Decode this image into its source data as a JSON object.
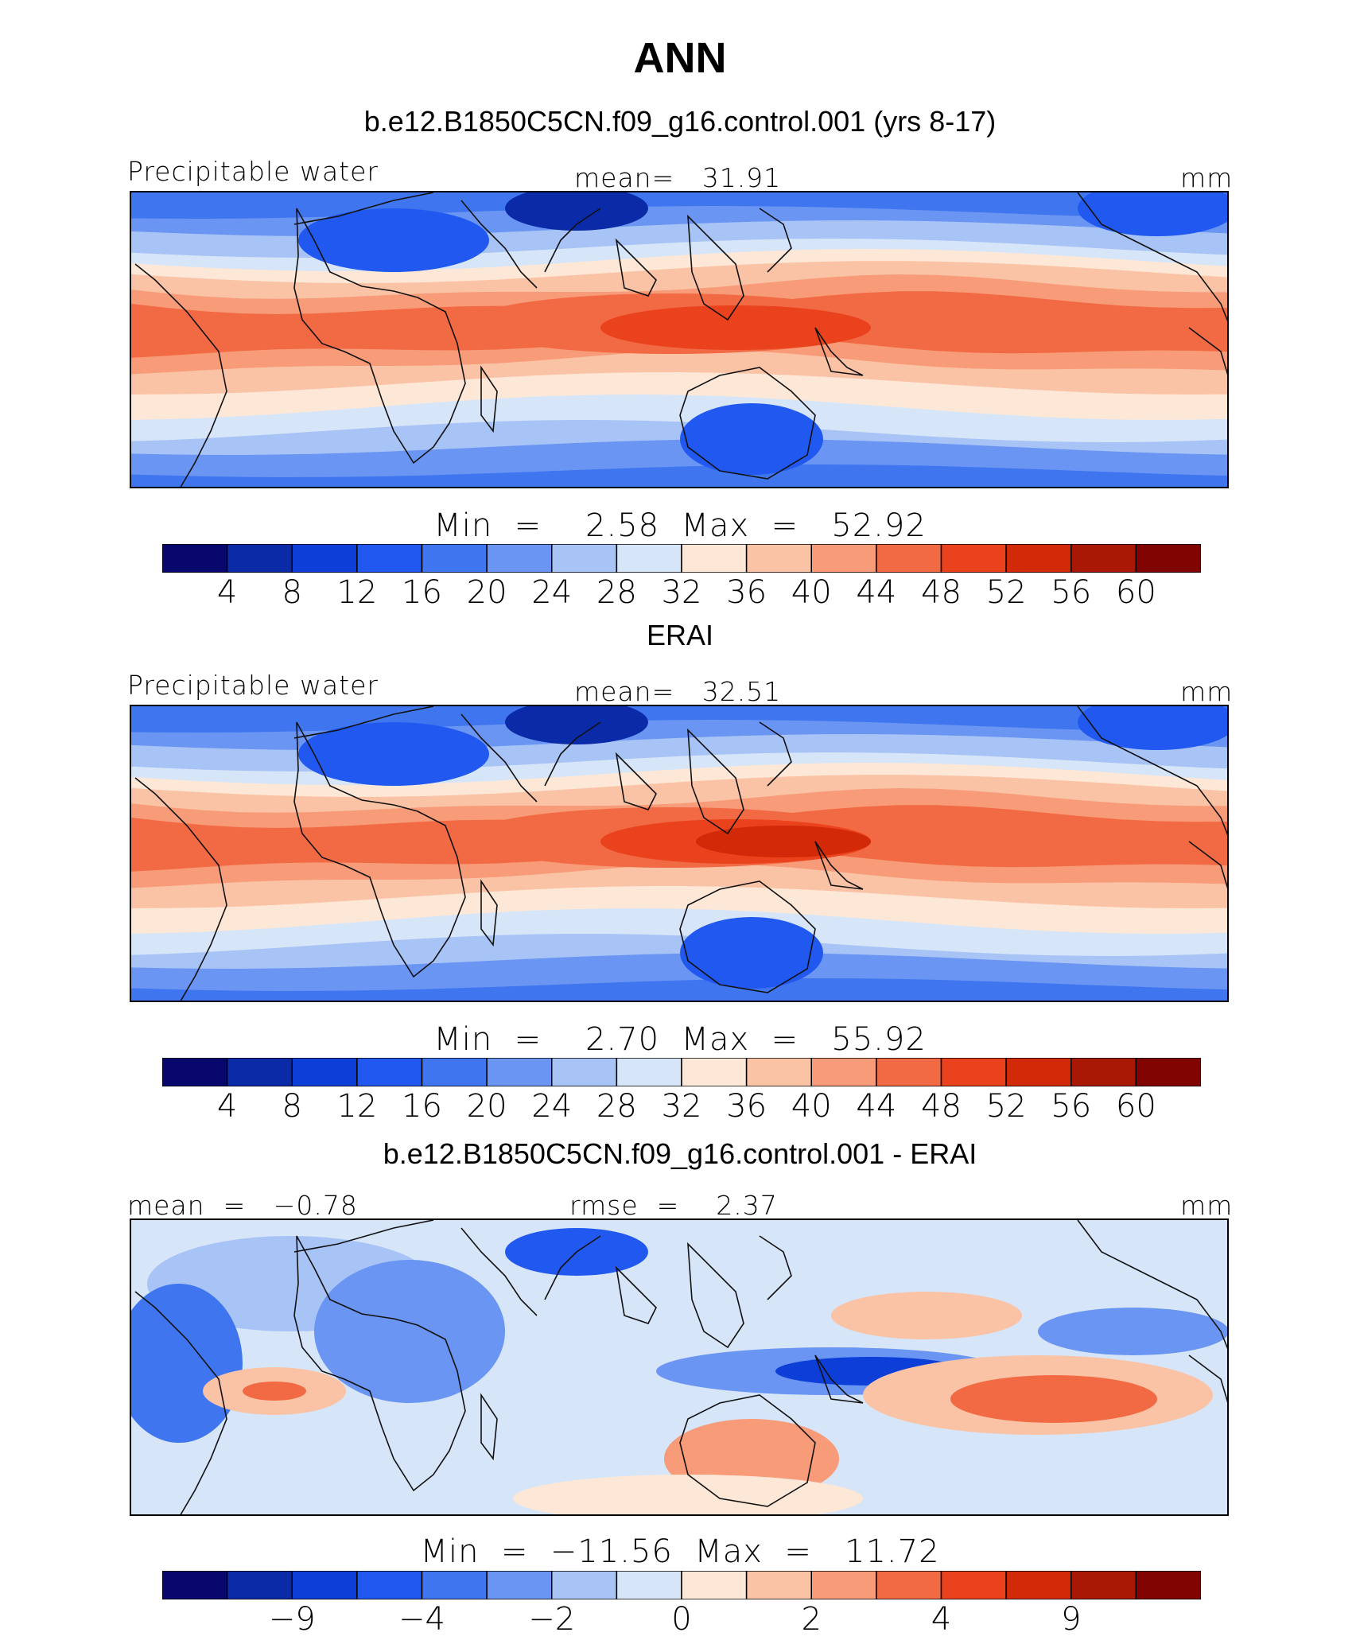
{
  "title": "ANN",
  "colors": [
    "#08076e",
    "#0a2aa8",
    "#0d3fd8",
    "#2158f0",
    "#3f76f0",
    "#6a95f2",
    "#a8c3f6",
    "#d6e5f8",
    "#fde8d8",
    "#fbc3a6",
    "#f79b78",
    "#f26a44",
    "#e9421c",
    "#d22a08",
    "#a81804",
    "#800402"
  ],
  "chart_data": [
    {
      "type": "heatmap",
      "title": "b.e12.B1850C5CN.f09_g16.control.001 (yrs 8-17)",
      "variable": "Precipitable water",
      "stat_label": "mean=   31.91",
      "units": "mm",
      "mean": 31.91,
      "min": 2.58,
      "max": 52.92,
      "minmax_label": "Min  =    2.58  Max  =   52.92",
      "levels": [
        4,
        8,
        12,
        16,
        20,
        24,
        28,
        32,
        36,
        40,
        44,
        48,
        52,
        56,
        60
      ],
      "tick_labels": [
        "4",
        "8",
        "12",
        "16",
        "20",
        "24",
        "28",
        "32",
        "36",
        "40",
        "44",
        "48",
        "52",
        "56",
        "60"
      ]
    },
    {
      "type": "heatmap",
      "title": "ERAI",
      "variable": "Precipitable water",
      "stat_label": "mean=   32.51",
      "units": "mm",
      "mean": 32.51,
      "min": 2.7,
      "max": 55.92,
      "minmax_label": "Min  =    2.70  Max  =   55.92",
      "levels": [
        4,
        8,
        12,
        16,
        20,
        24,
        28,
        32,
        36,
        40,
        44,
        48,
        52,
        56,
        60
      ],
      "tick_labels": [
        "4",
        "8",
        "12",
        "16",
        "20",
        "24",
        "28",
        "32",
        "36",
        "40",
        "44",
        "48",
        "52",
        "56",
        "60"
      ]
    },
    {
      "type": "heatmap",
      "title": "b.e12.B1850C5CN.f09_g16.control.001 - ERAI",
      "variable": "",
      "stat_label_left": "mean  =   −0.78",
      "stat_label": "rmse  =    2.37",
      "units": "mm",
      "mean": -0.78,
      "rmse": 2.37,
      "min": -11.56,
      "max": 11.72,
      "minmax_label": "Min  =  −11.56  Max  =   11.72",
      "levels": [
        -9,
        -4,
        -2,
        0,
        2,
        4,
        9
      ],
      "tick_labels": [
        "−9",
        "−4",
        "−2",
        "0",
        "2",
        "4",
        "9"
      ]
    }
  ]
}
